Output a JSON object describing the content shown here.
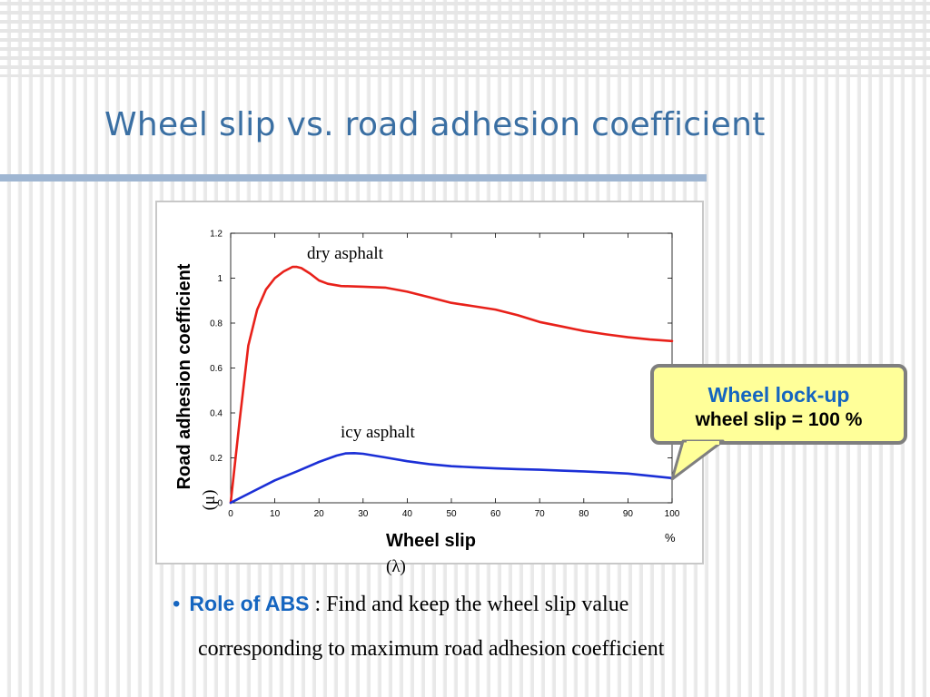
{
  "slide": {
    "title": "Wheel slip vs. road adhesion coefficient",
    "callout": {
      "line1": "Wheel lock-up",
      "line2": "wheel slip = 100 %"
    },
    "bullet": {
      "key": "Role of ABS",
      "text": " : Find and keep the wheel slip value",
      "continuation": "corresponding to maximum road adhesion coefficient"
    },
    "colors": {
      "title": "#3a6fa3",
      "accent_blue": "#1565c0",
      "callout_fill": "#ffff99",
      "callout_border": "#7f7f7f"
    }
  },
  "chart_data": {
    "type": "line",
    "title": "",
    "ylabel": "Road adhesion coefficient",
    "ylabel_symbol": "(μ)",
    "xlabel": "Wheel slip",
    "xlabel_symbol": "(λ)",
    "x_unit": "%",
    "xlim": [
      0,
      100
    ],
    "ylim": [
      0,
      1.2
    ],
    "x_ticks": [
      0,
      10,
      20,
      30,
      40,
      50,
      60,
      70,
      80,
      90,
      100
    ],
    "y_ticks": [
      0,
      0.2,
      0.4,
      0.6,
      0.8,
      1,
      1.2
    ],
    "x_tick_labels": [
      "0",
      "10",
      "20",
      "30",
      "40",
      "50",
      "60",
      "70",
      "80",
      "90",
      "100"
    ],
    "y_tick_labels": [
      "0",
      "0.2",
      "0.4",
      "0.6",
      "0.8",
      "1",
      "1.2"
    ],
    "grid": false,
    "series": [
      {
        "name": "dry asphalt",
        "color": "#e8211a",
        "x": [
          0,
          2,
          4,
          6,
          8,
          10,
          12,
          14,
          15,
          16,
          18,
          20,
          22,
          25,
          30,
          35,
          40,
          45,
          50,
          55,
          60,
          65,
          70,
          75,
          80,
          85,
          90,
          95,
          100
        ],
        "y": [
          0,
          0.36,
          0.7,
          0.86,
          0.95,
          1.0,
          1.03,
          1.05,
          1.05,
          1.045,
          1.02,
          0.99,
          0.975,
          0.965,
          0.962,
          0.958,
          0.94,
          0.915,
          0.89,
          0.875,
          0.86,
          0.835,
          0.805,
          0.785,
          0.765,
          0.75,
          0.737,
          0.727,
          0.72
        ]
      },
      {
        "name": "icy asphalt",
        "color": "#1b2fd6",
        "x": [
          0,
          5,
          10,
          15,
          20,
          24,
          26,
          28,
          30,
          35,
          40,
          45,
          50,
          55,
          60,
          65,
          70,
          75,
          80,
          85,
          90,
          95,
          100
        ],
        "y": [
          0,
          0.05,
          0.1,
          0.14,
          0.182,
          0.21,
          0.22,
          0.221,
          0.218,
          0.202,
          0.185,
          0.172,
          0.163,
          0.158,
          0.153,
          0.15,
          0.147,
          0.143,
          0.14,
          0.135,
          0.13,
          0.12,
          0.11
        ]
      }
    ],
    "annotations": [
      {
        "text": "dry asphalt"
      },
      {
        "text": "icy asphalt"
      }
    ]
  }
}
